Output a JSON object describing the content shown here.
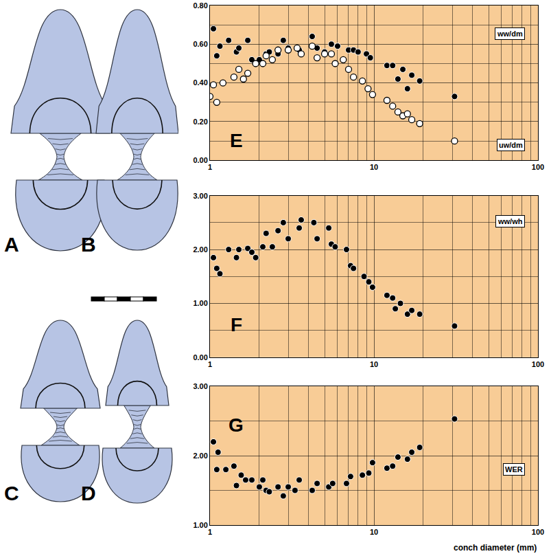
{
  "diagram": {
    "panels": [
      "A",
      "B",
      "C",
      "D"
    ]
  },
  "chart_data": [
    {
      "type": "scatter",
      "title": "E",
      "log": "x",
      "grid": true,
      "xlim": [
        1,
        100
      ],
      "xticks": [
        1,
        10,
        100
      ],
      "ylim": [
        0,
        0.8
      ],
      "yticks": [
        {
          "value": 0,
          "label": "0.00"
        },
        {
          "value": 0.2,
          "label": "0.20"
        },
        {
          "value": 0.4,
          "label": "0.40"
        },
        {
          "value": 0.6,
          "label": "0.60"
        },
        {
          "value": 0.8,
          "label": "0.80"
        }
      ],
      "series": [
        {
          "name": "ww/dm",
          "color": "#000000",
          "marker": "circle",
          "x": [
            1.05,
            1.1,
            1.15,
            1.3,
            1.45,
            1.5,
            1.7,
            1.8,
            2.0,
            2.2,
            2.3,
            2.6,
            2.8,
            3.0,
            3.5,
            4.2,
            4.5,
            5.0,
            5.5,
            6.0,
            7.0,
            7.5,
            8.0,
            9.0,
            9.5,
            12,
            13,
            14,
            15,
            16,
            17,
            19,
            31
          ],
          "values": [
            0.68,
            0.54,
            0.59,
            0.62,
            0.56,
            0.58,
            0.62,
            0.52,
            0.52,
            0.55,
            0.56,
            0.55,
            0.62,
            0.58,
            0.57,
            0.64,
            0.58,
            0.56,
            0.6,
            0.59,
            0.57,
            0.57,
            0.56,
            0.55,
            0.53,
            0.49,
            0.49,
            0.42,
            0.47,
            0.37,
            0.44,
            0.41,
            0.33
          ]
        },
        {
          "name": "uw/dm",
          "color": "#ffffff",
          "marker": "circle",
          "x": [
            1.0,
            1.05,
            1.1,
            1.2,
            1.4,
            1.5,
            1.6,
            1.7,
            1.9,
            2.1,
            2.2,
            2.4,
            2.6,
            3.0,
            3.4,
            3.6,
            4.2,
            4.5,
            5.0,
            5.5,
            5.8,
            6.5,
            7.0,
            7.5,
            8.5,
            9.2,
            9.8,
            12,
            13,
            14,
            15,
            16,
            17,
            19,
            31
          ],
          "values": [
            0.33,
            0.39,
            0.3,
            0.4,
            0.43,
            0.47,
            0.42,
            0.45,
            0.5,
            0.5,
            0.54,
            0.52,
            0.57,
            0.57,
            0.58,
            0.55,
            0.59,
            0.53,
            0.55,
            0.55,
            0.5,
            0.52,
            0.47,
            0.43,
            0.41,
            0.37,
            0.34,
            0.31,
            0.28,
            0.25,
            0.23,
            0.24,
            0.21,
            0.19,
            0.1
          ]
        }
      ]
    },
    {
      "type": "scatter",
      "title": "F",
      "log": "x",
      "grid": true,
      "xlim": [
        1,
        100
      ],
      "xticks": [
        1,
        10,
        100
      ],
      "ylim": [
        0,
        3
      ],
      "yticks": [
        {
          "value": 0,
          "label": "0.00"
        },
        {
          "value": 1,
          "label": "1.00"
        },
        {
          "value": 2,
          "label": "2.00"
        },
        {
          "value": 3,
          "label": "3.00"
        }
      ],
      "series": [
        {
          "name": "ww/wh",
          "color": "#000000",
          "marker": "circle",
          "x": [
            1.05,
            1.1,
            1.15,
            1.3,
            1.45,
            1.5,
            1.7,
            1.8,
            1.9,
            2.1,
            2.2,
            2.4,
            2.6,
            2.8,
            3.0,
            3.5,
            3.6,
            4.3,
            4.5,
            5.3,
            5.5,
            5.8,
            6.8,
            7.2,
            7.5,
            8.7,
            9.3,
            9.8,
            12,
            13,
            13.5,
            14.5,
            16,
            17,
            19,
            31
          ],
          "values": [
            1.85,
            1.65,
            1.55,
            2.0,
            1.85,
            2.0,
            2.02,
            1.95,
            1.85,
            2.05,
            2.3,
            2.05,
            2.35,
            2.5,
            2.2,
            2.4,
            2.55,
            2.5,
            2.2,
            2.4,
            2.1,
            2.05,
            2.0,
            1.7,
            1.65,
            1.5,
            1.4,
            1.3,
            1.15,
            1.1,
            0.9,
            1.0,
            0.8,
            0.87,
            0.8,
            0.58
          ]
        }
      ]
    },
    {
      "type": "scatter",
      "title": "G",
      "log": "x",
      "grid": true,
      "xlabel": "conch diameter (mm)",
      "xlim": [
        1,
        100
      ],
      "xticks": [
        1,
        10,
        100
      ],
      "ylim": [
        1,
        3
      ],
      "yticks": [
        {
          "value": 1,
          "label": "1.00"
        },
        {
          "value": 2,
          "label": "2.00"
        },
        {
          "value": 3,
          "label": "3.00"
        }
      ],
      "series": [
        {
          "name": "WER",
          "color": "#000000",
          "marker": "circle",
          "x": [
            1.05,
            1.1,
            1.12,
            1.25,
            1.4,
            1.45,
            1.55,
            1.65,
            1.8,
            2.0,
            2.1,
            2.2,
            2.3,
            2.6,
            2.8,
            3.0,
            3.3,
            3.5,
            4.2,
            4.5,
            5.3,
            5.6,
            6.8,
            7.2,
            8.5,
            9.3,
            9.8,
            12,
            13,
            14,
            16,
            17,
            19,
            31
          ],
          "values": [
            2.2,
            1.8,
            2.05,
            1.8,
            1.85,
            1.57,
            1.72,
            1.65,
            1.65,
            1.55,
            1.65,
            1.5,
            1.48,
            1.55,
            1.42,
            1.55,
            1.5,
            1.65,
            1.5,
            1.6,
            1.55,
            1.6,
            1.6,
            1.7,
            1.72,
            1.75,
            1.9,
            1.82,
            1.85,
            1.98,
            1.95,
            2.05,
            2.12,
            2.53
          ]
        }
      ]
    }
  ]
}
